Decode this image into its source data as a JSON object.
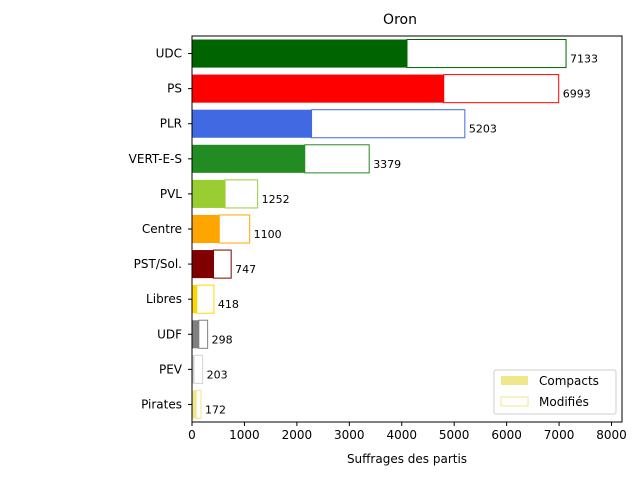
{
  "chart_data": {
    "type": "bar",
    "orientation": "horizontal",
    "title": "Oron",
    "xlabel": "Suffrages des partis",
    "ylabel": "",
    "xlim": [
      0,
      8200
    ],
    "xticks": [
      0,
      1000,
      2000,
      3000,
      4000,
      5000,
      6000,
      7000,
      8000
    ],
    "grid": false,
    "legend_position": "bottom-right",
    "categories": [
      "UDC",
      "PS",
      "PLR",
      "VERT-E-S",
      "PVL",
      "Centre",
      "PST/Sol.",
      "Libres",
      "UDF",
      "PEV",
      "Pirates"
    ],
    "colors": [
      "#006400",
      "#ff0000",
      "#4169e1",
      "#228b22",
      "#9acd32",
      "#ffa500",
      "#800000",
      "#ffd700",
      "#808080",
      "#d3d3d3",
      "#f0e68c"
    ],
    "series": [
      {
        "name": "Compacts",
        "values": [
          4100,
          4800,
          2280,
          2150,
          630,
          520,
          410,
          90,
          130,
          40,
          80
        ]
      },
      {
        "name": "Modifiés",
        "values": [
          3033,
          2193,
          2923,
          1229,
          622,
          580,
          337,
          328,
          168,
          163,
          92
        ]
      }
    ],
    "totals": [
      7133,
      6993,
      5203,
      3379,
      1252,
      1100,
      747,
      418,
      298,
      203,
      172
    ],
    "legend": {
      "compact_color": "#f0e68c",
      "modified_edge": "#f0e68c"
    }
  }
}
